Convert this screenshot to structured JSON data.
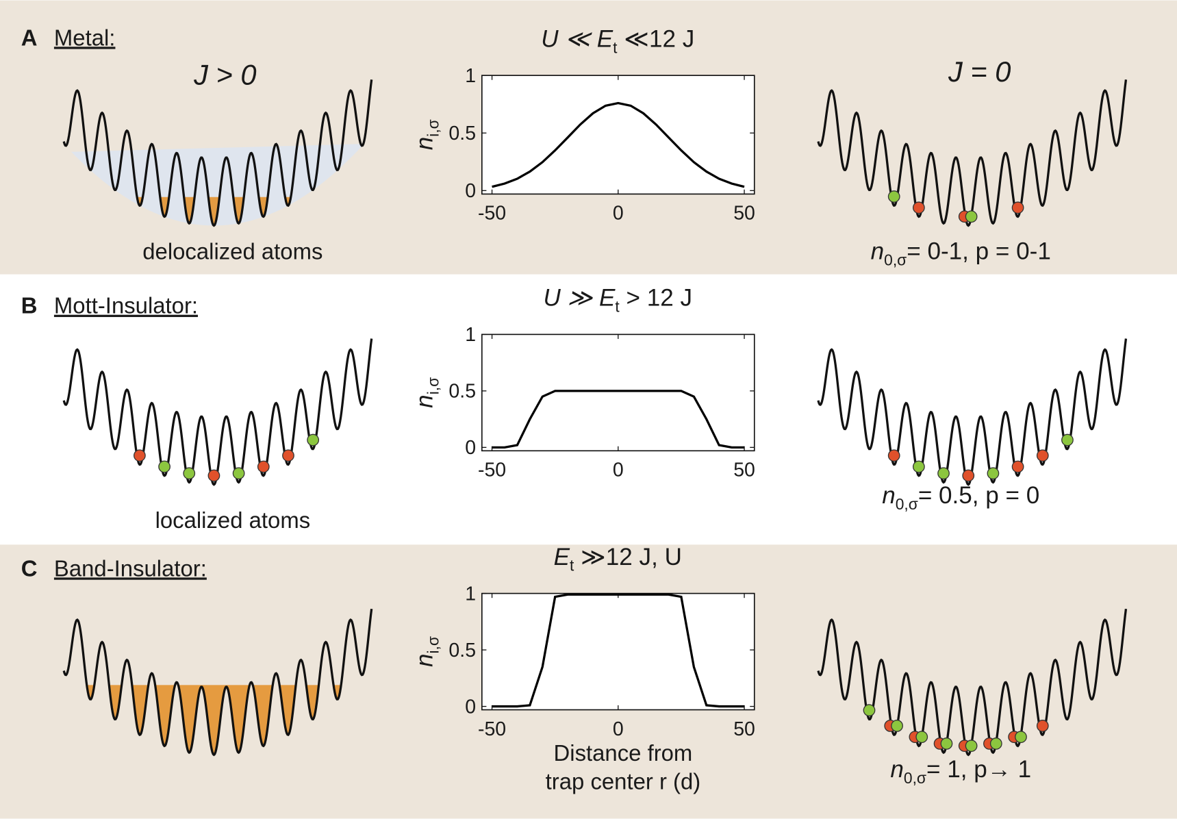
{
  "panels": [
    {
      "letter": "A",
      "heading": "Metal:",
      "left_label": "J > 0",
      "left_caption": "delocalized atoms",
      "right_label": "J = 0",
      "right_caption": {
        "main": "n",
        "sub": "0,σ",
        "tail": "= 0-1, p = 0-1"
      }
    },
    {
      "letter": "B",
      "heading": "Mott-Insulator:",
      "left_caption": "localized atoms",
      "right_caption": {
        "main": "n",
        "sub": "0,σ",
        "tail": "= 0.5,  p = 0"
      }
    },
    {
      "letter": "C",
      "heading": "Band-Insulator:",
      "right_caption": {
        "main": "n",
        "sub": "0,σ",
        "tail": "= 1,  p→ 1"
      }
    }
  ],
  "chart_data": [
    {
      "type": "line",
      "title": {
        "main": "U ≪ E",
        "sub": "t",
        "tail": " ≪12 J"
      },
      "ylabel": {
        "main": "n",
        "sub": "i,σ"
      },
      "x": [
        -50,
        -45,
        -40,
        -35,
        -30,
        -25,
        -20,
        -15,
        -10,
        -5,
        0,
        5,
        10,
        15,
        20,
        25,
        30,
        35,
        40,
        45,
        50
      ],
      "values": [
        0.033,
        0.061,
        0.103,
        0.165,
        0.247,
        0.349,
        0.461,
        0.574,
        0.671,
        0.737,
        0.76,
        0.737,
        0.671,
        0.574,
        0.461,
        0.349,
        0.247,
        0.165,
        0.103,
        0.061,
        0.033
      ],
      "color": "#000000",
      "xlim": [
        -54,
        54
      ],
      "ylim": [
        -0.03,
        1.0
      ],
      "xticks": [
        -50,
        0,
        50
      ],
      "yticks": [
        0,
        0.5,
        1
      ]
    },
    {
      "type": "line",
      "title": {
        "main": "U ≫ E",
        "sub": "t",
        "tail": " > 12 J"
      },
      "ylabel": {
        "main": "n",
        "sub": "i,σ"
      },
      "x": [
        -50,
        -45,
        -40,
        -35,
        -30,
        -25,
        -20,
        -15,
        -10,
        -5,
        0,
        5,
        10,
        15,
        20,
        25,
        30,
        35,
        40,
        45,
        50
      ],
      "values": [
        0,
        0,
        0.02,
        0.25,
        0.45,
        0.5,
        0.5,
        0.5,
        0.5,
        0.5,
        0.5,
        0.5,
        0.5,
        0.5,
        0.5,
        0.5,
        0.45,
        0.25,
        0.02,
        0,
        0
      ],
      "color": "#000000",
      "xlim": [
        -54,
        54
      ],
      "ylim": [
        -0.03,
        1.0
      ],
      "xticks": [
        -50,
        0,
        50
      ],
      "yticks": [
        0,
        0.5,
        1
      ]
    },
    {
      "type": "line",
      "title": {
        "main": "E",
        "sub": "t",
        "tail": " ≫12 J, U"
      },
      "ylabel": {
        "main": "n",
        "sub": "i,σ"
      },
      "xlabel": [
        "Distance from",
        "trap center r (d)"
      ],
      "x": [
        -50,
        -45,
        -40,
        -35,
        -30,
        -25,
        -20,
        -15,
        -10,
        -5,
        0,
        5,
        10,
        15,
        20,
        25,
        30,
        35,
        40,
        45,
        50
      ],
      "values": [
        0,
        0,
        0,
        0.01,
        0.35,
        0.97,
        0.99,
        0.99,
        0.99,
        0.99,
        0.99,
        0.99,
        0.99,
        0.99,
        0.99,
        0.97,
        0.35,
        0.01,
        0,
        0,
        0
      ],
      "color": "#000000",
      "xlim": [
        -54,
        54
      ],
      "ylim": [
        -0.03,
        1.0
      ],
      "xticks": [
        -50,
        0,
        50
      ],
      "yticks": [
        0,
        0.5,
        1
      ]
    }
  ]
}
